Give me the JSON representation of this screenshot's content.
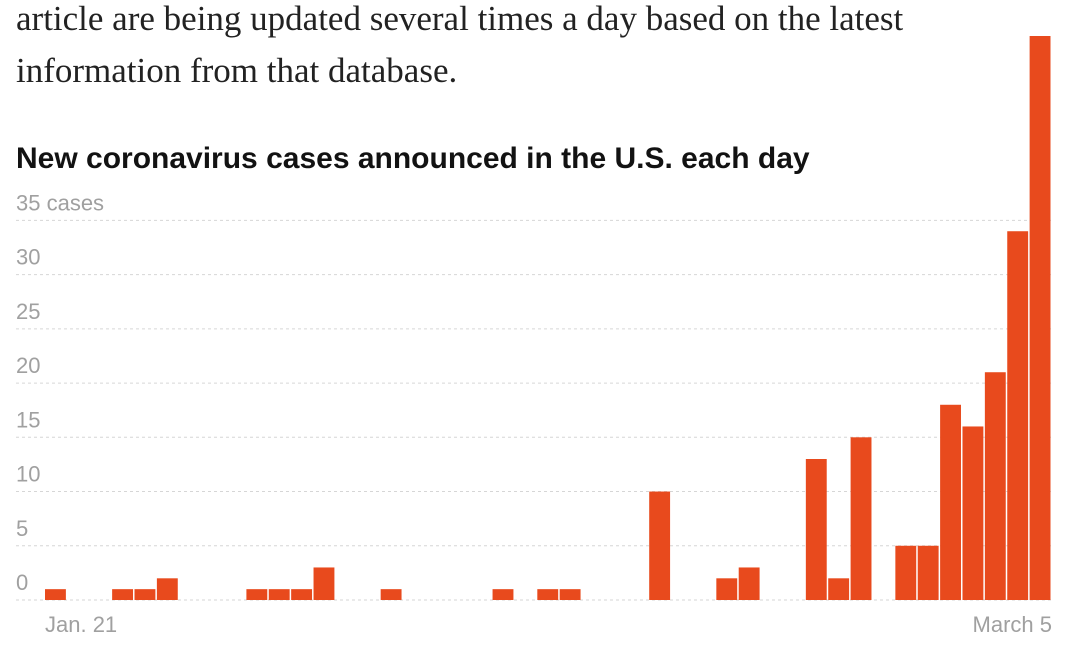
{
  "text": {
    "lines": [
      "article are being updated several times a day based on the latest",
      "information from that database."
    ]
  },
  "chart_data": {
    "type": "bar",
    "title": "New coronavirus cases announced in the U.S. each day",
    "categories": [
      "Jan. 21",
      null,
      null,
      null,
      null,
      null,
      null,
      null,
      null,
      null,
      null,
      null,
      null,
      null,
      null,
      null,
      null,
      null,
      null,
      null,
      null,
      null,
      null,
      null,
      null,
      null,
      null,
      null,
      null,
      null,
      null,
      null,
      null,
      null,
      null,
      null,
      null,
      null,
      null,
      null,
      null,
      null,
      null,
      null,
      "March 5"
    ],
    "values": [
      1,
      0,
      0,
      1,
      1,
      2,
      0,
      0,
      0,
      1,
      1,
      1,
      3,
      0,
      0,
      1,
      0,
      0,
      0,
      0,
      1,
      0,
      1,
      1,
      0,
      0,
      0,
      10,
      0,
      0,
      2,
      3,
      0,
      0,
      13,
      2,
      15,
      0,
      5,
      5,
      18,
      16,
      21,
      34,
      52
    ],
    "color": "#e84a1d",
    "ylim": [
      0,
      52
    ],
    "yticks": [
      0,
      5,
      10,
      15,
      20,
      25,
      30,
      {
        "value": 35,
        "label": "35 cases"
      }
    ],
    "grid": true
  }
}
